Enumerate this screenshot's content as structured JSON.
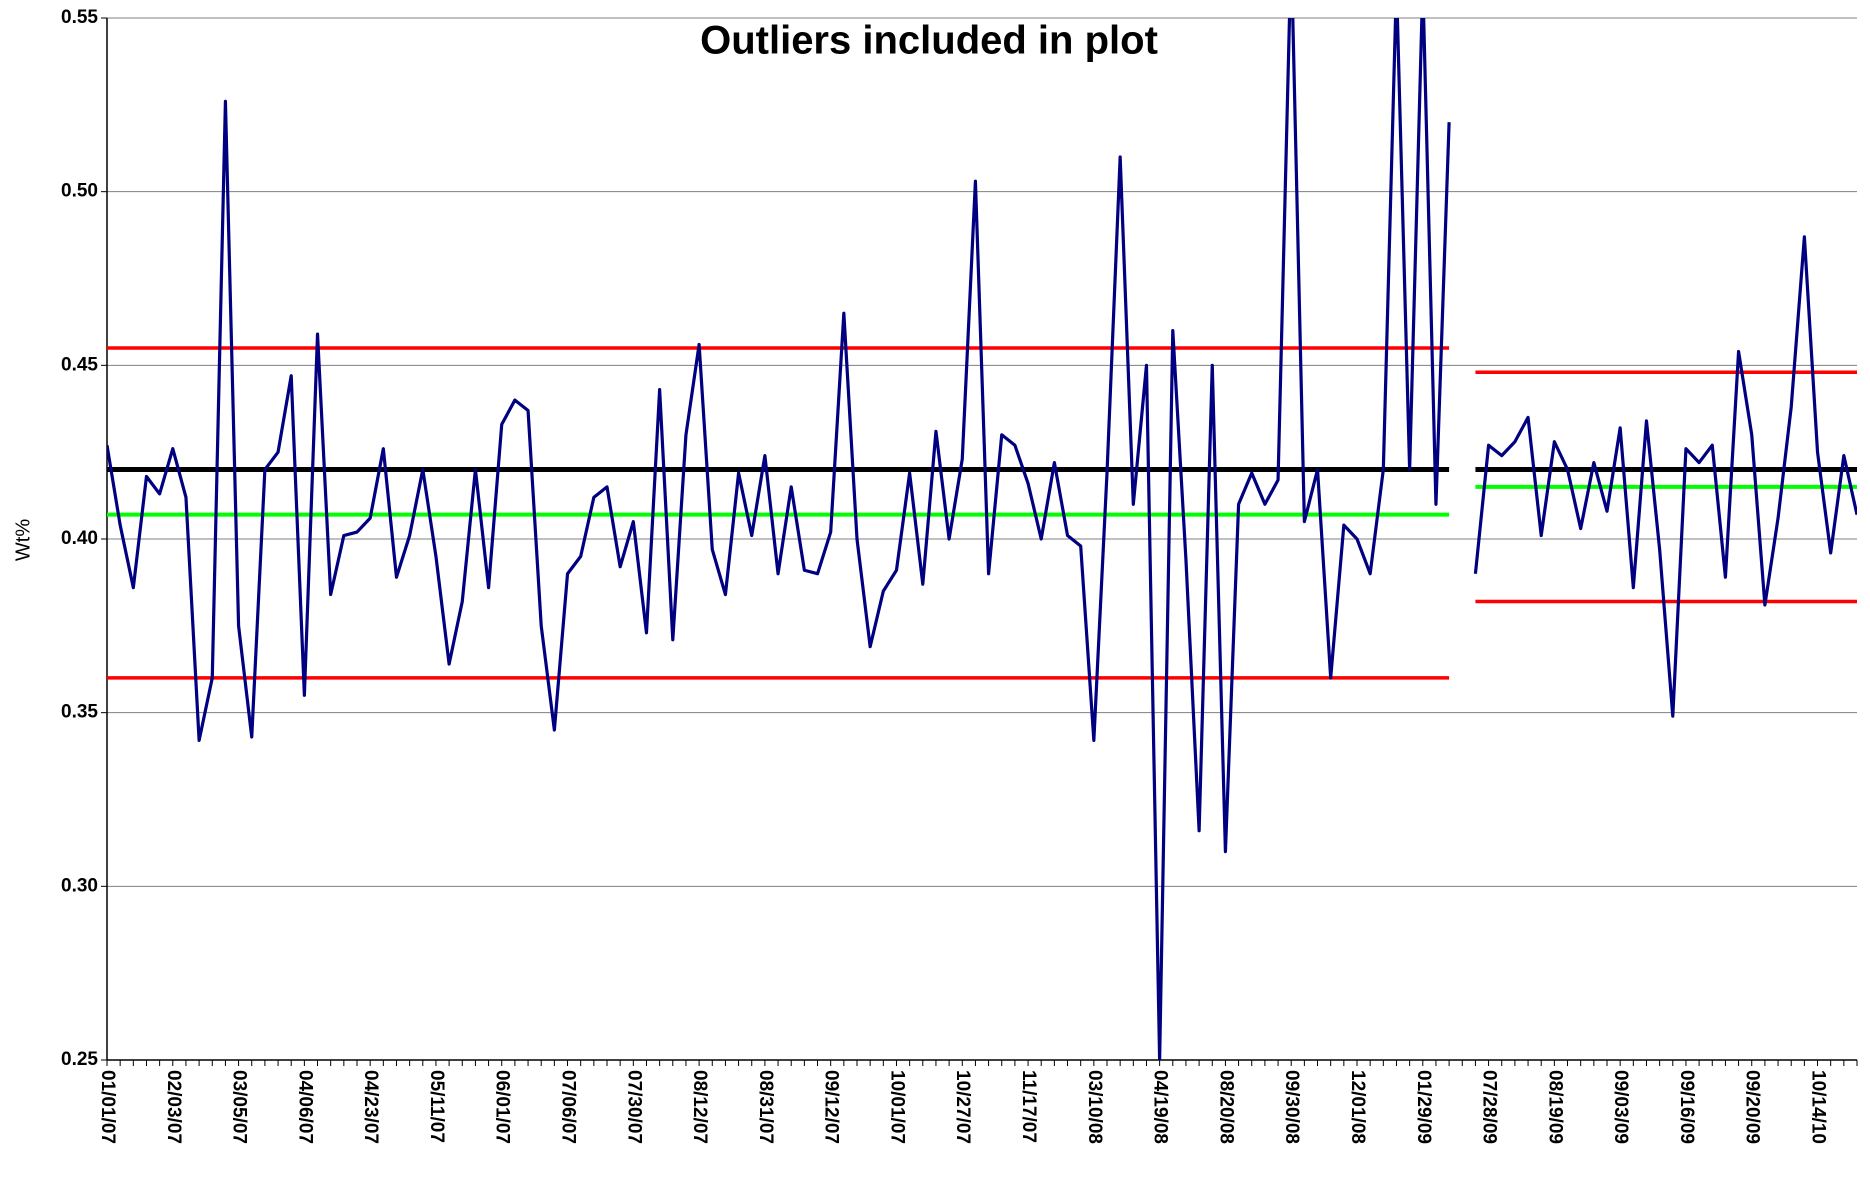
{
  "chart_data": {
    "type": "line",
    "title": "Outliers included in plot",
    "y_label": "Wt%",
    "categories": [
      "01/01/07",
      null,
      null,
      null,
      null,
      "02/03/07",
      null,
      null,
      null,
      null,
      "03/05/07",
      null,
      null,
      null,
      null,
      "04/06/07",
      null,
      null,
      null,
      null,
      "04/23/07",
      null,
      null,
      null,
      null,
      "05/11/07",
      null,
      null,
      null,
      null,
      "06/01/07",
      null,
      null,
      null,
      null,
      "07/06/07",
      null,
      null,
      null,
      null,
      "07/30/07",
      null,
      null,
      null,
      null,
      "08/12/07",
      null,
      null,
      null,
      null,
      "08/31/07",
      null,
      null,
      null,
      null,
      "09/12/07",
      null,
      null,
      null,
      null,
      "10/01/07",
      null,
      null,
      null,
      null,
      "10/27/07",
      null,
      null,
      null,
      null,
      "11/17/07",
      null,
      null,
      null,
      null,
      "03/10/08",
      null,
      null,
      null,
      null,
      "04/19/08",
      null,
      null,
      null,
      null,
      "08/20/08",
      null,
      null,
      null,
      null,
      "09/30/08",
      null,
      null,
      null,
      null,
      "12/01/08",
      null,
      null,
      null,
      null,
      "01/29/09",
      null,
      null,
      null,
      null,
      "07/28/09",
      null,
      null,
      null,
      null,
      "08/19/09",
      null,
      null,
      null,
      null,
      "09/03/09",
      null,
      null,
      null,
      null,
      "09/16/09",
      null,
      null,
      null,
      null,
      "09/20/09",
      null,
      null,
      null,
      null,
      "10/14/10",
      null,
      null,
      null
    ],
    "series": [
      {
        "color": "#000080",
        "values": [
          0.427,
          0.404,
          0.386,
          0.418,
          0.413,
          0.426,
          0.412,
          0.342,
          0.36,
          0.526,
          0.375,
          0.343,
          0.42,
          0.425,
          0.447,
          0.355,
          0.459,
          0.384,
          0.401,
          0.402,
          0.406,
          0.426,
          0.389,
          0.401,
          0.42,
          0.395,
          0.364,
          0.382,
          0.42,
          0.386,
          0.433,
          0.44,
          0.437,
          0.375,
          0.345,
          0.39,
          0.395,
          0.412,
          0.415,
          0.392,
          0.405,
          0.373,
          0.443,
          0.371,
          0.43,
          0.456,
          0.397,
          0.384,
          0.419,
          0.401,
          0.424,
          0.39,
          0.415,
          0.391,
          0.39,
          0.402,
          0.465,
          0.4,
          0.369,
          0.385,
          0.391,
          0.419,
          0.387,
          0.431,
          0.4,
          0.423,
          0.503,
          0.39,
          0.43,
          0.427,
          0.416,
          0.4,
          0.422,
          0.401,
          0.398,
          0.342,
          0.419,
          0.51,
          0.41,
          0.45,
          0.25,
          0.46,
          0.394,
          0.316,
          0.45,
          0.31,
          0.41,
          0.419,
          0.41,
          0.417,
          0.57,
          0.405,
          0.42,
          0.36,
          0.404,
          0.4,
          0.39,
          0.42,
          0.56,
          0.42,
          0.56,
          0.41,
          0.52,
          null,
          0.39,
          0.427,
          0.424,
          0.428,
          0.435,
          0.401,
          0.428,
          0.42,
          0.403,
          0.422,
          0.408,
          0.432,
          0.386,
          0.434,
          0.397,
          0.349,
          0.426,
          0.422,
          0.427,
          0.389,
          0.454,
          0.43,
          0.381,
          0.406,
          0.438,
          0.487,
          0.425,
          0.396,
          0.424,
          0.407
        ]
      }
    ],
    "limits": [
      {
        "center": 0.42,
        "mean": 0.407,
        "ucl": 0.455,
        "lcl": 0.36
      },
      {
        "center": 0.42,
        "mean": 0.415,
        "ucl": 0.448,
        "lcl": 0.382
      }
    ],
    "limit_colors": {
      "center": "#000000",
      "mean": "#00ff00",
      "ucl": "#ff0000",
      "lcl": "#ff0000"
    },
    "ylim": [
      0.25,
      0.55
    ],
    "yticks": [
      0.25,
      {
        "value": 0.3,
        "label": "0.30"
      },
      0.35,
      {
        "value": 0.4,
        "label": "0.40"
      },
      0.45,
      {
        "value": 0.5,
        "label": "0.50"
      },
      0.55
    ],
    "grid": true
  }
}
